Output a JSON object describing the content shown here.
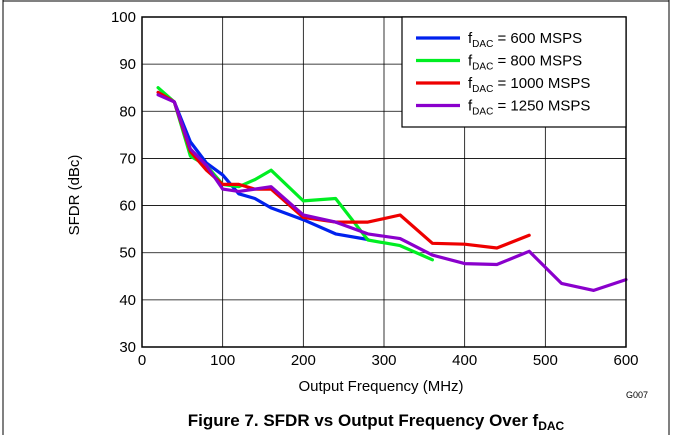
{
  "chart_data": {
    "type": "line",
    "title": "",
    "xlabel": "Output Frequency (MHz)",
    "ylabel": "SFDR (dBc)",
    "xlim": [
      0,
      600
    ],
    "ylim": [
      30,
      100
    ],
    "x_ticks": [
      0,
      100,
      200,
      300,
      400,
      500,
      600
    ],
    "y_ticks": [
      30,
      40,
      50,
      60,
      70,
      80,
      90,
      100
    ],
    "grid": true,
    "legend_position": "top-right",
    "series": [
      {
        "name": "f_DAC = 600 MSPS",
        "legend_prefix": "f",
        "legend_sub": "DAC",
        "legend_suffix": " = 600 MSPS",
        "color": "#0022ee",
        "x": [
          20,
          40,
          60,
          80,
          100,
          120,
          140,
          160,
          200,
          240,
          280
        ],
        "y": [
          84,
          82,
          73.5,
          69,
          66.5,
          62.5,
          61.5,
          59.5,
          57,
          54,
          52.8
        ]
      },
      {
        "name": "f_DAC = 800 MSPS",
        "legend_prefix": "f",
        "legend_sub": "DAC",
        "legend_suffix": " = 800 MSPS",
        "color": "#00ee22",
        "x": [
          20,
          40,
          60,
          80,
          100,
          120,
          140,
          160,
          200,
          240,
          280,
          320,
          360
        ],
        "y": [
          85,
          82,
          70.5,
          68.5,
          64.5,
          64,
          65.5,
          67.5,
          61,
          61.5,
          52.7,
          51.5,
          48.5
        ]
      },
      {
        "name": "f_DAC = 1000 MSPS",
        "legend_prefix": "f",
        "legend_sub": "DAC",
        "legend_suffix": " = 1000 MSPS",
        "color": "#ee0000",
        "x": [
          20,
          40,
          60,
          80,
          100,
          120,
          140,
          160,
          200,
          240,
          280,
          320,
          360,
          400,
          440,
          480
        ],
        "y": [
          84,
          82,
          71.5,
          67.5,
          64.5,
          64.5,
          63.5,
          63.5,
          57.5,
          56.5,
          56.5,
          58,
          52,
          51.8,
          51,
          53.7
        ]
      },
      {
        "name": "f_DAC = 1250 MSPS",
        "legend_prefix": "f",
        "legend_sub": "DAC",
        "legend_suffix": " = 1250 MSPS",
        "color": "#8a00cc",
        "x": [
          20,
          40,
          60,
          80,
          100,
          120,
          140,
          160,
          200,
          240,
          280,
          320,
          360,
          400,
          440,
          480,
          520,
          560,
          600
        ],
        "y": [
          83.5,
          82,
          72,
          68.5,
          63.5,
          63,
          63.5,
          64,
          58,
          56.5,
          54,
          53,
          49.5,
          47.7,
          47.5,
          50.3,
          43.5,
          42,
          44.3
        ]
      }
    ]
  },
  "figure_code": "G007",
  "caption": {
    "text": "Figure 7. SFDR vs Output Frequency Over f",
    "sub": "DAC"
  }
}
